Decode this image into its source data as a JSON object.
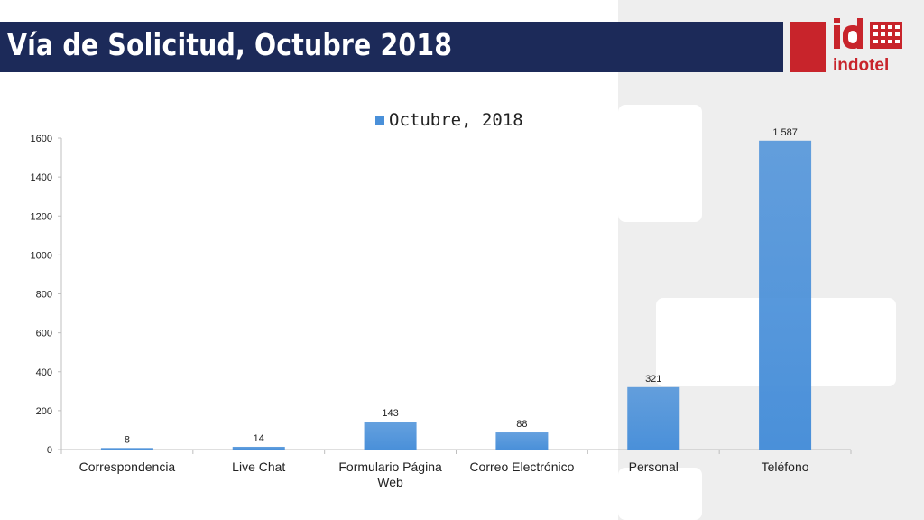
{
  "slide": {
    "title": "Vía de Solicitud, Octubre 2018",
    "logo_text": "indotel",
    "logo_mark": "id"
  },
  "colors": {
    "title_bar": "#1c2a59",
    "brand_red": "#c8242b",
    "bar": "#4a90d9"
  },
  "chart_data": {
    "type": "bar",
    "categories": [
      "Correspondencia",
      "Live Chat",
      "Formulario Página Web",
      "Correo Electrónico",
      "Personal",
      "Teléfono"
    ],
    "category_lines": [
      [
        "Correspondencia"
      ],
      [
        "Live Chat"
      ],
      [
        "Formulario Página",
        "Web"
      ],
      [
        "Correo Electrónico"
      ],
      [
        "Personal"
      ],
      [
        "Teléfono"
      ]
    ],
    "series": [
      {
        "name": "Octubre, 2018",
        "values": [
          8,
          14,
          143,
          88,
          321,
          1587
        ]
      }
    ],
    "data_labels": [
      "8",
      "14",
      "143",
      "88",
      "321",
      "1 587"
    ],
    "ylim": [
      0,
      1600
    ],
    "yticks": [
      0,
      200,
      400,
      600,
      800,
      1000,
      1200,
      1400,
      1600
    ],
    "grid": false,
    "legend_position": "top-center"
  }
}
